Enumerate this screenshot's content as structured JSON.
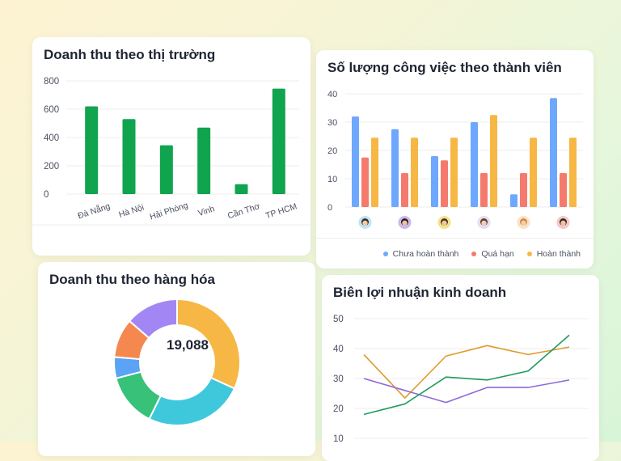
{
  "market_card": {
    "title": "Doanh thu theo thị trường"
  },
  "members_card": {
    "title": "Số lượng công việc theo thành viên",
    "legend": [
      {
        "label": "Chưa hoàn thành",
        "color": "#6ea8fe"
      },
      {
        "label": "Quá hạn",
        "color": "#f47a6e"
      },
      {
        "label": "Hoàn thành",
        "color": "#f7b744"
      }
    ]
  },
  "goods_card": {
    "title": "Doanh thu theo hàng hóa",
    "center_value": "19,088"
  },
  "profit_card": {
    "title": "Biên lợi nhuận kinh doanh"
  },
  "chart_data": [
    {
      "type": "bar",
      "title": "Doanh thu theo thị trường",
      "categories": [
        "Đà Nẵng",
        "Hà Nội",
        "Hải Phòng",
        "Vinh",
        "Cần Thơ",
        "TP HCM"
      ],
      "values": [
        620,
        530,
        345,
        470,
        70,
        745
      ],
      "ylim": [
        0,
        800
      ],
      "yticks": [
        0,
        200,
        400,
        600,
        800
      ],
      "color": "#10a44f"
    },
    {
      "type": "bar",
      "title": "Số lượng công việc theo thành viên",
      "categories": [
        "member-1",
        "member-2",
        "member-3",
        "member-4",
        "member-5",
        "member-6"
      ],
      "ylim": [
        0,
        40
      ],
      "yticks": [
        0,
        10,
        20,
        30,
        40
      ],
      "series": [
        {
          "name": "Chưa hoàn thành",
          "color": "#6ea8fe",
          "values": [
            32,
            27.5,
            18,
            30,
            4.5,
            38.5
          ]
        },
        {
          "name": "Quá hạn",
          "color": "#f47a6e",
          "values": [
            17.5,
            12,
            16.5,
            12,
            12,
            12
          ]
        },
        {
          "name": "Hoàn thành",
          "color": "#f7b744",
          "values": [
            24.5,
            24.5,
            24.5,
            32.5,
            24.5,
            24.5
          ]
        }
      ],
      "avatars": [
        {
          "bg": "#bfe3f5",
          "skin": "#f2c9a8",
          "hair": "#3a2a24"
        },
        {
          "bg": "#c9b8f0",
          "skin": "#f0c39c",
          "hair": "#2b1f1a"
        },
        {
          "bg": "#f3e28a",
          "skin": "#f1c7a0",
          "hair": "#4a3020"
        },
        {
          "bg": "#e3dcf3",
          "skin": "#f3cfb2",
          "hair": "#5b3a28"
        },
        {
          "bg": "#fbe2c4",
          "skin": "#f4cda8",
          "hair": "#c98a3e"
        },
        {
          "bg": "#f6c6c6",
          "skin": "#f1c2a2",
          "hair": "#3b2520"
        }
      ],
      "legend_position": "bottom-right"
    },
    {
      "type": "pie",
      "title": "Doanh thu theo hàng hóa",
      "slices": [
        {
          "value": 35,
          "color": "#f7b744"
        },
        {
          "value": 28,
          "color": "#3fc8dc"
        },
        {
          "value": 15,
          "color": "#37c179"
        },
        {
          "value": 6,
          "color": "#5aa3f5"
        },
        {
          "value": 11,
          "color": "#f5884f"
        },
        {
          "value": 15,
          "color": "#a287f4"
        }
      ]
    },
    {
      "type": "line",
      "title": "Biên lợi nhuận kinh doanh",
      "x": [
        0,
        1,
        2,
        3,
        4,
        5
      ],
      "ylim": [
        10,
        50
      ],
      "yticks": [
        10,
        20,
        30,
        40,
        50
      ],
      "series": [
        {
          "color": "#e09a2a",
          "values": [
            38,
            23.5,
            37.5,
            41,
            38,
            40.5
          ]
        },
        {
          "color": "#8e6ad8",
          "values": [
            30,
            26,
            22,
            27,
            27,
            29.5
          ]
        },
        {
          "color": "#1e9c5e",
          "values": [
            18,
            21.5,
            30.5,
            29.5,
            32.5,
            44.5
          ]
        }
      ]
    }
  ]
}
